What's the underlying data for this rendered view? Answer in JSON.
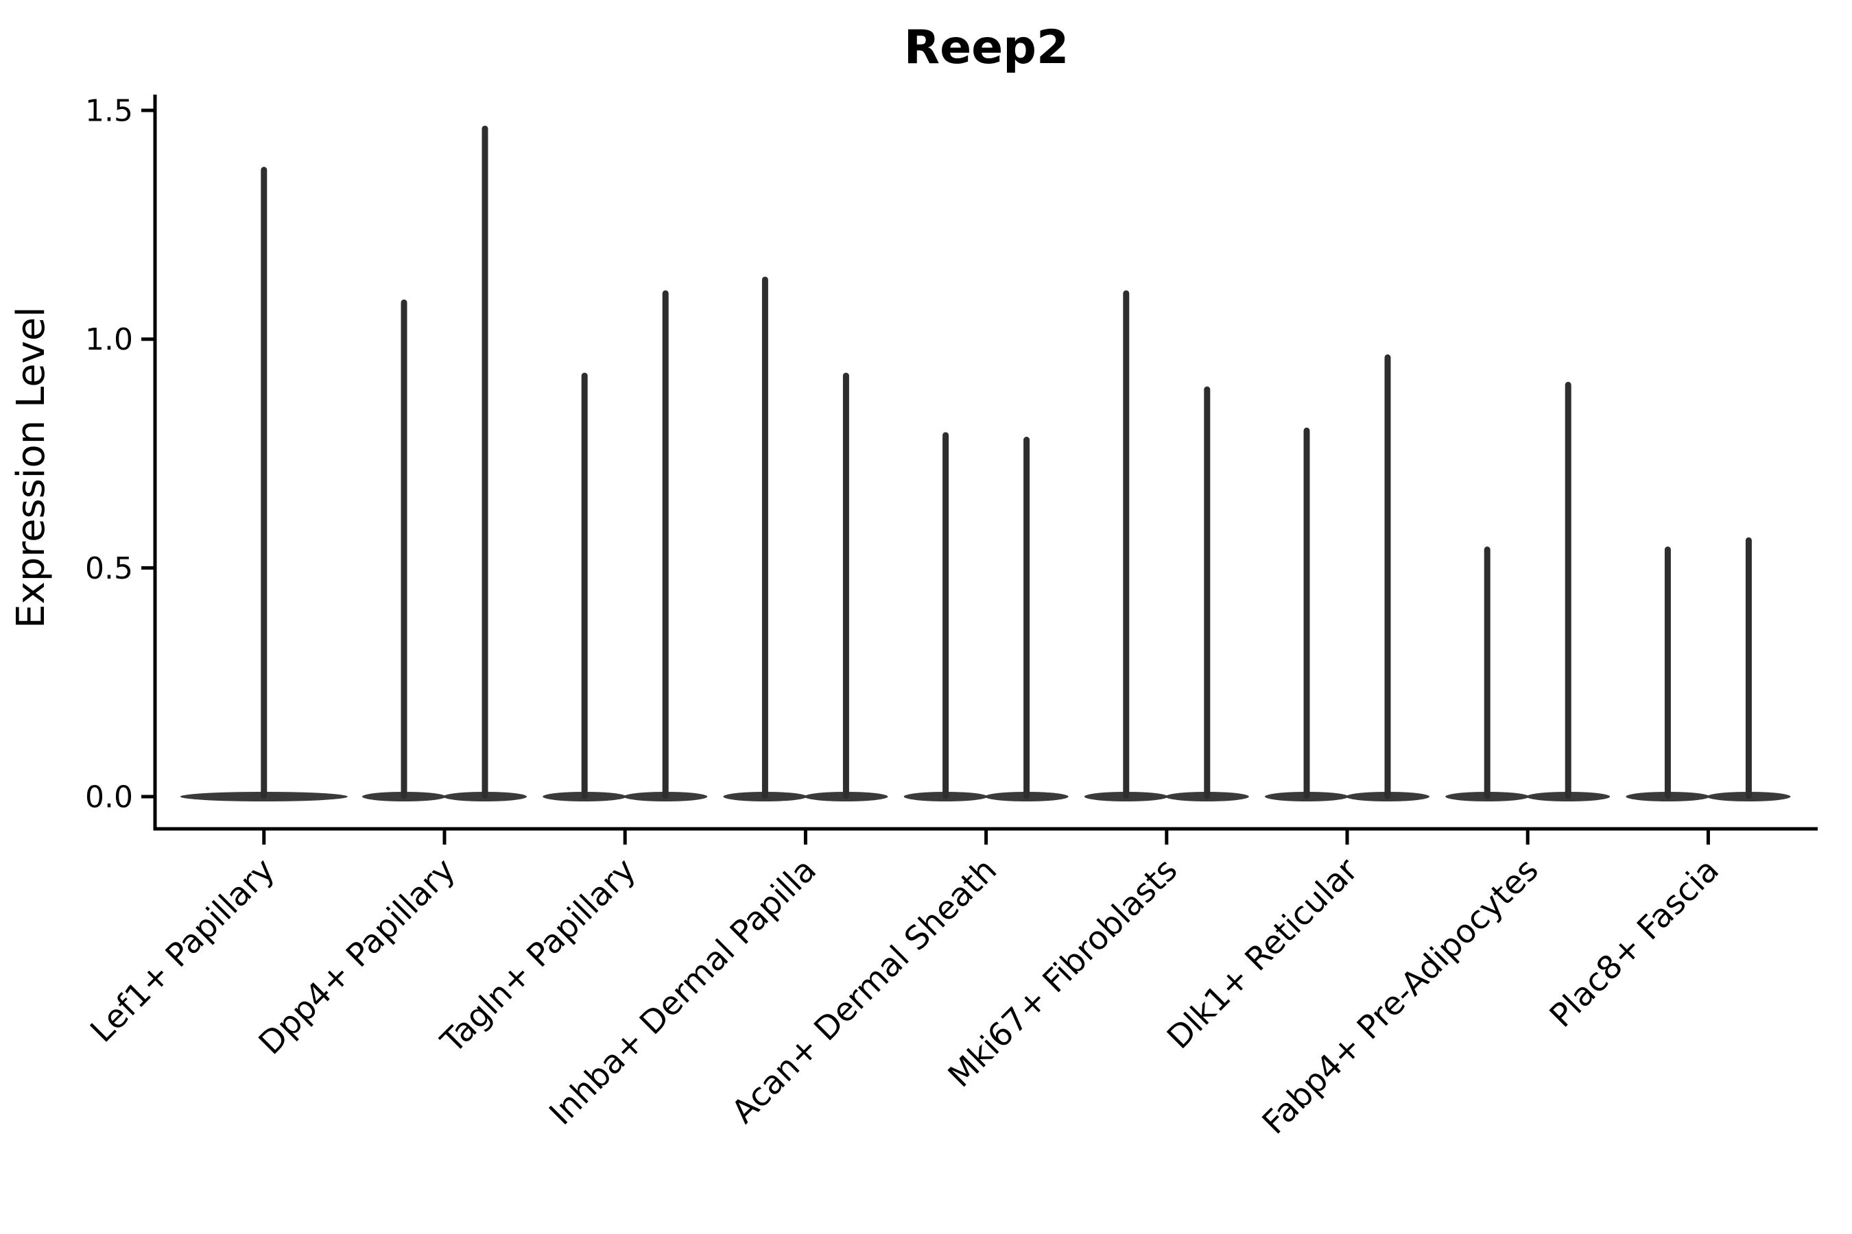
{
  "chart_data": {
    "type": "violin",
    "title": "Reep2",
    "ylabel": "Expression Level",
    "xlabel": "",
    "ylim": [
      0,
      1.5
    ],
    "yticks": [
      0.0,
      0.5,
      1.0,
      1.5
    ],
    "grid": false,
    "legend_position": "none",
    "x_tick_rotation_deg": 45,
    "description": "Violin plot of sparse single-cell expression of Reep2 per fibroblast subtype: each violin collapses to a flat disc at 0 with a thin spike up to the maximum expression value. Most cell types show two side-by-side violins (split groups); the first shows one centered violin.",
    "categories": [
      "Lef1+ Papillary",
      "Dpp4+ Papillary",
      "Tagln+ Papillary",
      "Inhba+ Dermal Papilla",
      "Acan+ Dermal Sheath",
      "Mki67+ Fibroblasts",
      "Dlk1+ Reticular",
      "Fabp4+ Pre-Adipocytes",
      "Plac8+ Fascia"
    ],
    "series": [
      {
        "category": "Lef1+ Papillary",
        "violin_max": [
          1.37
        ]
      },
      {
        "category": "Dpp4+ Papillary",
        "violin_max": [
          1.08,
          1.46
        ]
      },
      {
        "category": "Tagln+ Papillary",
        "violin_max": [
          0.92,
          1.1
        ]
      },
      {
        "category": "Inhba+ Dermal Papilla",
        "violin_max": [
          1.13,
          0.92
        ]
      },
      {
        "category": "Acan+ Dermal Sheath",
        "violin_max": [
          0.79,
          0.78
        ]
      },
      {
        "category": "Mki67+ Fibroblasts",
        "violin_max": [
          1.1,
          0.89
        ]
      },
      {
        "category": "Dlk1+ Reticular",
        "violin_max": [
          0.8,
          0.96
        ]
      },
      {
        "category": "Fabp4+ Pre-Adipocytes",
        "violin_max": [
          0.54,
          0.9
        ]
      },
      {
        "category": "Plac8+ Fascia",
        "violin_max": [
          0.54,
          0.56
        ]
      }
    ],
    "colors": {
      "violin_fill": "#3a3a3a",
      "spike": "#2e2e2e",
      "axis": "#000000",
      "text": "#000000",
      "background": "#ffffff"
    }
  }
}
